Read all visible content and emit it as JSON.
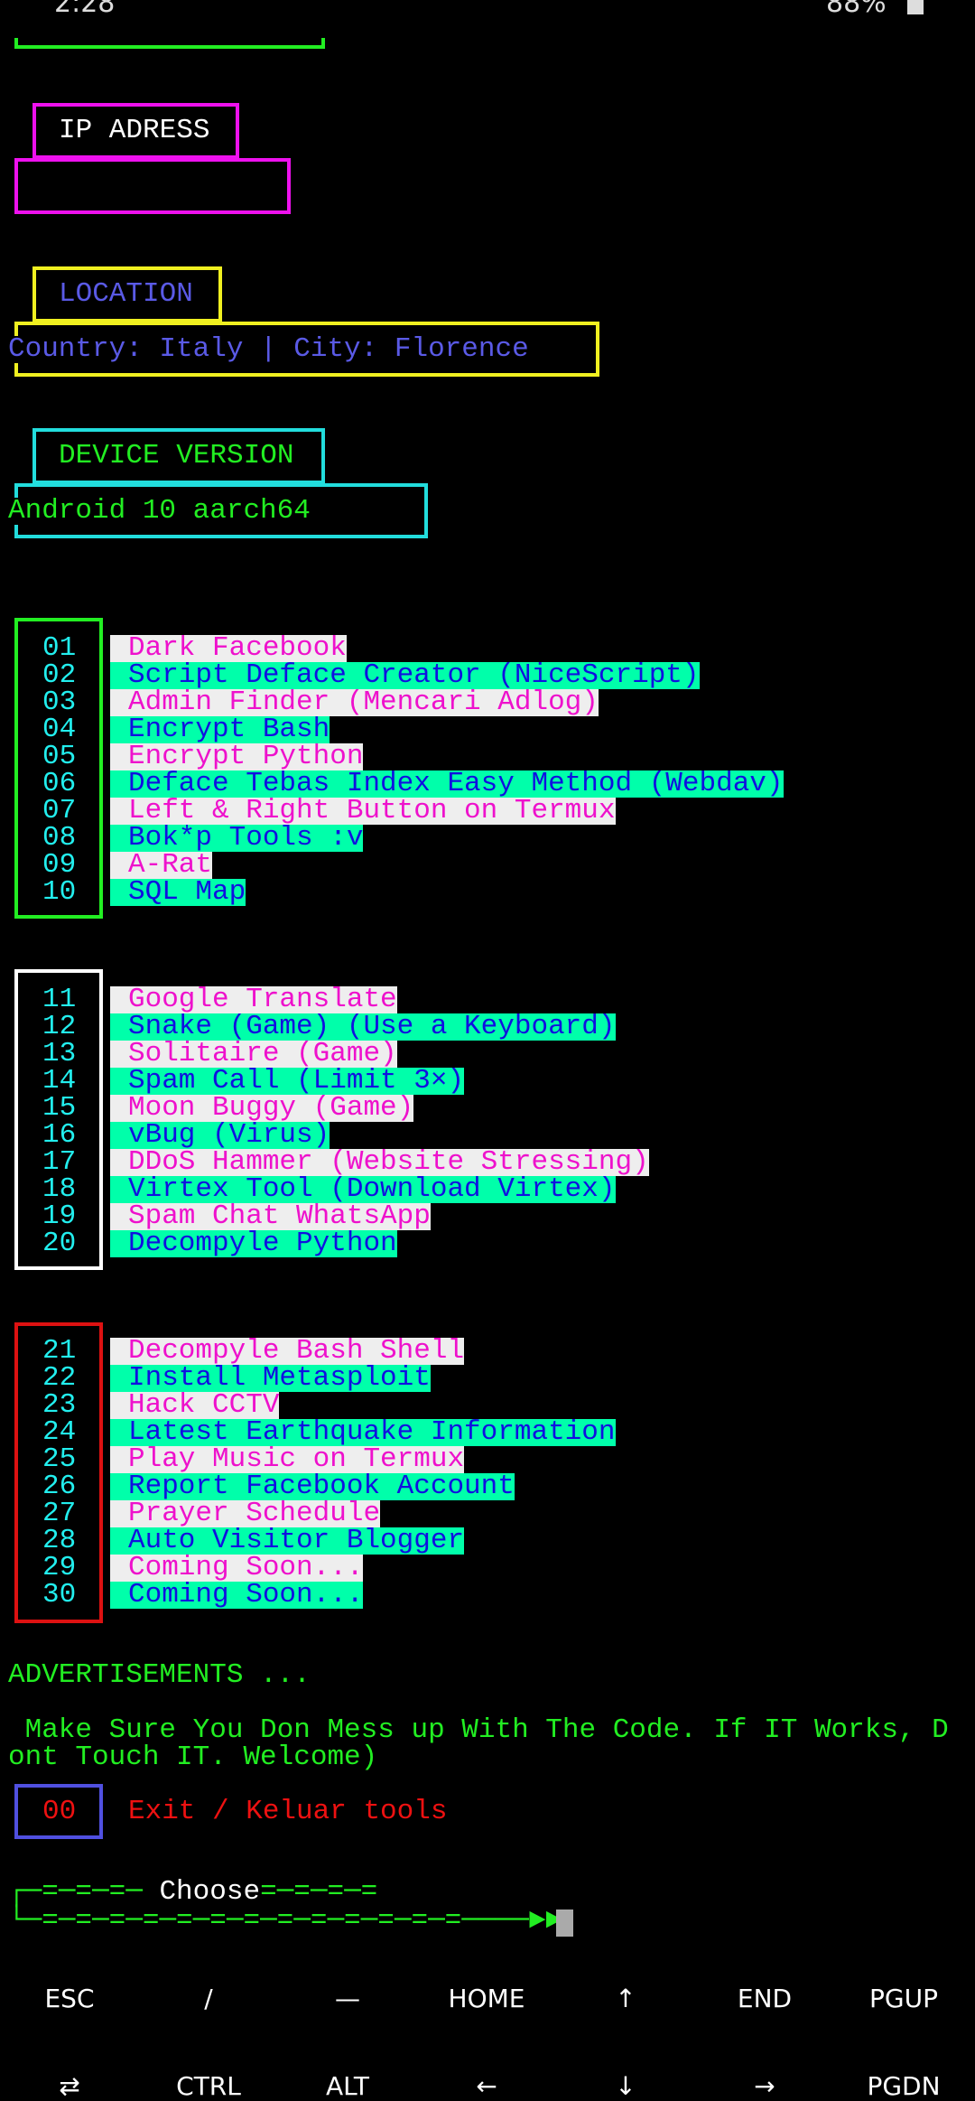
{
  "status_bar": {
    "time": "2:28",
    "battery": "88%"
  },
  "ip_section": {
    "title": "IP ADRESS",
    "value": ""
  },
  "location_section": {
    "title": "LOCATION",
    "value": "Country: Italy | City: Florence"
  },
  "device_section": {
    "title": "DEVICE VERSION",
    "value": "Android 10 aarch64"
  },
  "menu_groups": [
    {
      "items": [
        {
          "num": "01",
          "label": "Dark Facebook"
        },
        {
          "num": "02",
          "label": "Script Deface Creator (NiceScript)"
        },
        {
          "num": "03",
          "label": "Admin Finder (Mencari Adlog)"
        },
        {
          "num": "04",
          "label": "Encrypt Bash"
        },
        {
          "num": "05",
          "label": "Encrypt Python"
        },
        {
          "num": "06",
          "label": "Deface Tebas Index Easy Method (Webdav)"
        },
        {
          "num": "07",
          "label": "Left & Right Button on Termux"
        },
        {
          "num": "08",
          "label": "Bok*p Tools :v"
        },
        {
          "num": "09",
          "label": "A-Rat"
        },
        {
          "num": "10",
          "label": "SQL Map"
        }
      ]
    },
    {
      "items": [
        {
          "num": "11",
          "label": "Google Translate"
        },
        {
          "num": "12",
          "label": "Snake (Game) (Use a Keyboard)"
        },
        {
          "num": "13",
          "label": "Solitaire (Game)"
        },
        {
          "num": "14",
          "label": "Spam Call (Limit 3×)"
        },
        {
          "num": "15",
          "label": "Moon Buggy (Game)"
        },
        {
          "num": "16",
          "label": "vBug (Virus)"
        },
        {
          "num": "17",
          "label": "DDoS Hammer (Website Stressing)"
        },
        {
          "num": "18",
          "label": "Virtex Tool (Download Virtex)"
        },
        {
          "num": "19",
          "label": "Spam Chat WhatsApp"
        },
        {
          "num": "20",
          "label": "Decompyle Python"
        }
      ]
    },
    {
      "items": [
        {
          "num": "21",
          "label": "Decompyle Bash Shell"
        },
        {
          "num": "22",
          "label": "Install Metasploit"
        },
        {
          "num": "23",
          "label": "Hack CCTV"
        },
        {
          "num": "24",
          "label": "Latest Earthquake Information"
        },
        {
          "num": "25",
          "label": "Play Music on Termux"
        },
        {
          "num": "26",
          "label": "Report Facebook Account"
        },
        {
          "num": "27",
          "label": "Prayer Schedule"
        },
        {
          "num": "28",
          "label": "Auto Visitor Blogger"
        },
        {
          "num": "29",
          "label": "Coming Soon..."
        },
        {
          "num": "30",
          "label": "Coming Soon..."
        }
      ]
    }
  ],
  "ads": {
    "title": "ADVERTISEMENTS ...",
    "line1": " Make Sure You Don Mess up With The Code. If IT Works, D",
    "line2": "ont Touch IT. Welcome)"
  },
  "exit": {
    "num": "00",
    "label": "Exit / Keluar tools"
  },
  "prompt": {
    "top_left": "┌─=─=─=─ ",
    "label": "Choose",
    "top_right": "=─=─=─=",
    "bottom": "└─=─=─=─=─=─=─=─=─=─=─=─=─=────►►"
  },
  "extra_keys": {
    "row1": [
      "ESC",
      "/",
      "—",
      "HOME",
      "↑",
      "END",
      "PGUP"
    ],
    "row2": [
      "⇄",
      "CTRL",
      "ALT",
      "←",
      "↓",
      "→",
      "PGDN"
    ]
  },
  "colors": {
    "green": "#22ee22",
    "magenta": "#ee11ee",
    "yellow": "#f0f020",
    "cyan": "#22dddd",
    "red": "#dd1111",
    "blue": "#5050e0"
  }
}
